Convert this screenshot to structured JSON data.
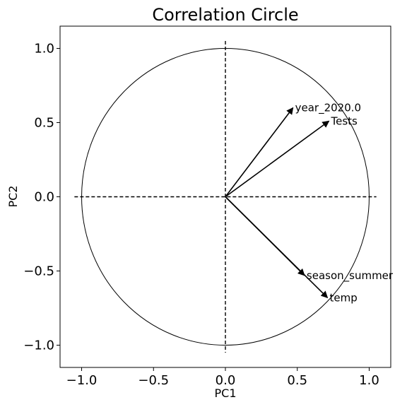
{
  "chart_data": {
    "type": "scatter",
    "title": "Correlation Circle",
    "xlabel": "PC1",
    "ylabel": "PC2",
    "xlim": [
      -1.15,
      1.15
    ],
    "ylim": [
      -1.15,
      1.15
    ],
    "xticks": [
      -1.0,
      -0.5,
      0.0,
      0.5,
      1.0
    ],
    "yticks": [
      -1.0,
      -0.5,
      0.0,
      0.5,
      1.0
    ],
    "xtick_labels": [
      "−1.0",
      "−0.5",
      "0.0",
      "0.5",
      "1.0"
    ],
    "ytick_labels": [
      "−1.0",
      "−0.5",
      "0.0",
      "0.5",
      "1.0"
    ],
    "unit_circle_radius": 1.0,
    "grid": false,
    "vectors": [
      {
        "name": "year_2020.0",
        "x": 0.47,
        "y": 0.6
      },
      {
        "name": "Tests",
        "x": 0.72,
        "y": 0.51
      },
      {
        "name": "season_summer",
        "x": 0.55,
        "y": -0.53
      },
      {
        "name": "temp",
        "x": 0.71,
        "y": -0.68
      }
    ]
  }
}
